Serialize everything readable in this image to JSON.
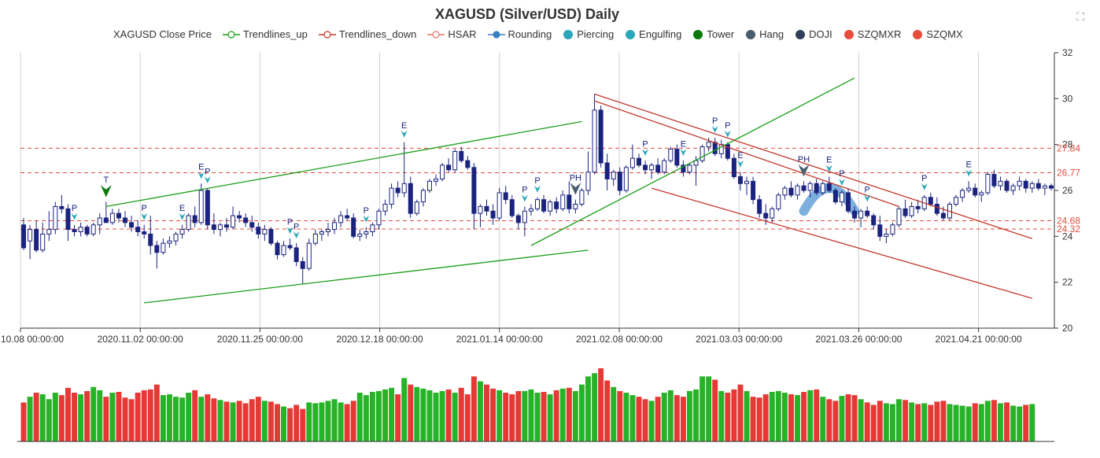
{
  "chart_data": {
    "type": "candlestick",
    "title": "XAGUSD (Silver/USD) Daily",
    "legend": [
      {
        "name": "XAGUSD Close Price",
        "marker": "none",
        "color": "#333333"
      },
      {
        "name": "Trendlines_up",
        "marker": "line-circle",
        "color": "#1a9e1a"
      },
      {
        "name": "Trendlines_down",
        "marker": "line-circle",
        "color": "#c0392b"
      },
      {
        "name": "HSAR",
        "marker": "line-circle-dashed",
        "color": "#e8746b"
      },
      {
        "name": "Rounding",
        "marker": "line-dot",
        "color": "#3a7fc1"
      },
      {
        "name": "Piercing",
        "marker": "dot",
        "color": "#2aa7b8"
      },
      {
        "name": "Engulfing",
        "marker": "dot",
        "color": "#2aa7b8"
      },
      {
        "name": "Tower",
        "marker": "dot",
        "color": "#0a7a0a"
      },
      {
        "name": "Hang",
        "marker": "dot",
        "color": "#4a5e6e"
      },
      {
        "name": "DOJI",
        "marker": "dot",
        "color": "#2e3f5a"
      },
      {
        "name": "SZQMXR",
        "marker": "dot",
        "color": "#e74c3c"
      },
      {
        "name": "SZQMX",
        "marker": "dot",
        "color": "#e74c3c"
      }
    ],
    "x_tick_labels": [
      "2020.10.08 00:00:00",
      "2020.11.02 00:00:00",
      "2020.11.25 00:00:00",
      "2020.12.18 00:00:00",
      "2021.01.14 00:00:00",
      "2021.02.08 00:00:00",
      "2021.03.03 00:00:00",
      "2021.03.26 00:00:00",
      "2021.04.21 00:00:00"
    ],
    "y_ticks": [
      20,
      22,
      24,
      26,
      28,
      30,
      32
    ],
    "ylim": [
      20,
      32
    ],
    "grid": {
      "vertical": true,
      "horizontal": false
    },
    "hsar_levels": [
      {
        "value": 27.84,
        "label": "27.84"
      },
      {
        "value": 26.77,
        "label": "26.77"
      },
      {
        "value": 24.68,
        "label": "24.68"
      },
      {
        "value": 24.32,
        "label": "24.32"
      }
    ],
    "candles": [
      [
        24.5,
        24.8,
        23.4,
        23.5
      ],
      [
        23.8,
        24.5,
        23.0,
        24.3
      ],
      [
        24.3,
        24.7,
        23.3,
        23.4
      ],
      [
        23.4,
        24.6,
        23.3,
        24.1
      ],
      [
        24.1,
        25.1,
        23.8,
        24.3
      ],
      [
        24.3,
        25.5,
        24.1,
        25.3
      ],
      [
        25.3,
        25.8,
        25.0,
        25.2
      ],
      [
        25.2,
        25.4,
        23.8,
        24.3
      ],
      [
        24.3,
        24.5,
        24.0,
        24.2
      ],
      [
        24.2,
        24.6,
        24.0,
        24.4
      ],
      [
        24.4,
        24.5,
        24.0,
        24.1
      ],
      [
        24.1,
        24.6,
        24.0,
        24.5
      ],
      [
        24.5,
        25.0,
        24.1,
        24.8
      ],
      [
        24.8,
        25.5,
        24.6,
        24.6
      ],
      [
        24.6,
        25.2,
        24.5,
        25.0
      ],
      [
        25.0,
        25.2,
        24.6,
        24.8
      ],
      [
        24.8,
        25.1,
        24.4,
        24.6
      ],
      [
        24.6,
        24.9,
        24.2,
        24.4
      ],
      [
        24.4,
        24.7,
        24.0,
        24.2
      ],
      [
        24.2,
        24.5,
        23.9,
        24.1
      ],
      [
        24.1,
        24.9,
        23.2,
        23.6
      ],
      [
        23.6,
        23.8,
        22.6,
        23.3
      ],
      [
        23.3,
        23.9,
        23.2,
        23.7
      ],
      [
        23.7,
        24.0,
        23.5,
        23.8
      ],
      [
        23.8,
        24.2,
        23.6,
        24.1
      ],
      [
        24.1,
        24.5,
        23.9,
        24.3
      ],
      [
        24.3,
        25.0,
        24.2,
        24.9
      ],
      [
        24.9,
        25.3,
        24.4,
        24.6
      ],
      [
        24.6,
        26.3,
        24.5,
        26.0
      ],
      [
        26.0,
        26.1,
        24.3,
        24.5
      ],
      [
        24.5,
        25.0,
        24.1,
        24.3
      ],
      [
        24.3,
        24.6,
        24.0,
        24.5
      ],
      [
        24.5,
        24.8,
        24.2,
        24.4
      ],
      [
        24.4,
        25.3,
        24.3,
        24.9
      ],
      [
        24.9,
        25.1,
        24.6,
        24.8
      ],
      [
        24.8,
        25.0,
        24.4,
        24.6
      ],
      [
        24.6,
        24.9,
        24.2,
        24.4
      ],
      [
        24.4,
        24.6,
        23.9,
        24.1
      ],
      [
        24.1,
        24.5,
        23.8,
        24.3
      ],
      [
        24.3,
        24.4,
        23.6,
        23.7
      ],
      [
        23.7,
        23.8,
        23.0,
        23.2
      ],
      [
        23.2,
        23.8,
        23.1,
        23.6
      ],
      [
        23.6,
        23.9,
        23.4,
        23.5
      ],
      [
        23.5,
        23.7,
        22.7,
        22.9
      ],
      [
        22.9,
        23.1,
        21.9,
        22.6
      ],
      [
        22.6,
        23.9,
        22.5,
        23.7
      ],
      [
        23.7,
        24.3,
        23.6,
        24.1
      ],
      [
        24.1,
        24.3,
        23.8,
        24.2
      ],
      [
        24.2,
        24.6,
        24.0,
        24.3
      ],
      [
        24.3,
        24.8,
        24.1,
        24.6
      ],
      [
        24.6,
        25.1,
        24.4,
        24.9
      ],
      [
        24.9,
        25.2,
        24.7,
        24.8
      ],
      [
        24.8,
        25.0,
        23.9,
        24.0
      ],
      [
        24.0,
        24.3,
        23.8,
        24.1
      ],
      [
        24.1,
        24.4,
        23.9,
        24.2
      ],
      [
        24.2,
        24.6,
        24.0,
        24.5
      ],
      [
        24.5,
        25.2,
        24.3,
        25.1
      ],
      [
        25.1,
        25.6,
        24.9,
        25.4
      ],
      [
        25.4,
        26.3,
        25.2,
        26.1
      ],
      [
        26.1,
        26.4,
        25.7,
        25.9
      ],
      [
        25.9,
        28.1,
        25.7,
        26.3
      ],
      [
        26.3,
        26.6,
        24.8,
        25.0
      ],
      [
        25.0,
        25.6,
        24.9,
        25.5
      ],
      [
        25.5,
        26.1,
        25.3,
        26.0
      ],
      [
        26.0,
        26.5,
        25.9,
        26.4
      ],
      [
        26.4,
        26.7,
        26.2,
        26.5
      ],
      [
        26.5,
        27.2,
        26.4,
        27.1
      ],
      [
        27.1,
        27.4,
        26.8,
        26.9
      ],
      [
        26.9,
        27.8,
        26.8,
        27.7
      ],
      [
        27.7,
        27.9,
        27.2,
        27.3
      ],
      [
        27.3,
        27.5,
        26.9,
        27.0
      ],
      [
        27.0,
        27.2,
        24.3,
        25.0
      ],
      [
        25.0,
        25.4,
        24.4,
        25.3
      ],
      [
        25.3,
        25.6,
        24.9,
        25.1
      ],
      [
        25.1,
        25.4,
        24.5,
        24.8
      ],
      [
        24.8,
        26.1,
        24.7,
        25.9
      ],
      [
        25.9,
        26.2,
        25.4,
        25.6
      ],
      [
        25.6,
        25.8,
        24.8,
        24.9
      ],
      [
        24.9,
        25.0,
        24.3,
        24.6
      ],
      [
        24.6,
        25.3,
        24.0,
        25.1
      ],
      [
        25.1,
        25.4,
        24.9,
        25.2
      ],
      [
        25.2,
        25.7,
        25.1,
        25.6
      ],
      [
        25.6,
        25.8,
        25.0,
        25.1
      ],
      [
        25.1,
        25.6,
        24.9,
        25.5
      ],
      [
        25.5,
        25.7,
        25.0,
        25.2
      ],
      [
        25.2,
        26.0,
        25.1,
        25.8
      ],
      [
        25.8,
        26.4,
        25.0,
        25.2
      ],
      [
        25.2,
        25.6,
        25.0,
        25.4
      ],
      [
        25.4,
        26.1,
        25.3,
        26.0
      ],
      [
        26.0,
        27.7,
        25.8,
        26.8
      ],
      [
        26.8,
        30.2,
        26.7,
        29.5
      ],
      [
        29.5,
        29.7,
        27.0,
        27.2
      ],
      [
        27.2,
        27.6,
        26.0,
        26.5
      ],
      [
        26.5,
        26.9,
        26.2,
        26.8
      ],
      [
        26.8,
        27.0,
        25.8,
        26.0
      ],
      [
        26.0,
        27.1,
        25.9,
        27.0
      ],
      [
        27.0,
        28.0,
        26.9,
        27.4
      ],
      [
        27.4,
        27.6,
        27.0,
        27.1
      ],
      [
        27.1,
        27.3,
        26.7,
        26.9
      ],
      [
        26.9,
        27.2,
        26.5,
        27.1
      ],
      [
        27.1,
        27.4,
        26.7,
        26.8
      ],
      [
        26.8,
        27.4,
        26.7,
        27.3
      ],
      [
        27.3,
        27.9,
        27.2,
        27.8
      ],
      [
        27.8,
        28.0,
        27.0,
        27.1
      ],
      [
        27.1,
        27.3,
        26.6,
        26.8
      ],
      [
        26.8,
        27.2,
        26.7,
        27.1
      ],
      [
        27.1,
        27.5,
        26.2,
        27.3
      ],
      [
        27.3,
        28.0,
        27.2,
        27.9
      ],
      [
        27.9,
        28.3,
        27.7,
        28.1
      ],
      [
        28.1,
        28.3,
        27.5,
        27.6
      ],
      [
        27.6,
        28.2,
        27.4,
        28.0
      ],
      [
        28.0,
        28.1,
        27.3,
        27.4
      ],
      [
        27.4,
        27.6,
        26.5,
        26.6
      ],
      [
        26.6,
        26.8,
        26.0,
        26.3
      ],
      [
        26.3,
        26.6,
        25.8,
        26.4
      ],
      [
        26.4,
        26.6,
        25.4,
        25.6
      ],
      [
        25.6,
        25.8,
        24.8,
        25.0
      ],
      [
        25.0,
        25.4,
        24.5,
        24.8
      ],
      [
        24.8,
        25.3,
        24.6,
        25.2
      ],
      [
        25.2,
        25.9,
        25.1,
        25.8
      ],
      [
        25.8,
        26.2,
        25.6,
        26.1
      ],
      [
        26.1,
        26.4,
        25.7,
        25.8
      ],
      [
        25.8,
        26.3,
        25.6,
        26.2
      ],
      [
        26.2,
        26.4,
        25.9,
        26.0
      ],
      [
        26.0,
        26.4,
        25.7,
        26.3
      ],
      [
        26.3,
        26.5,
        25.8,
        25.9
      ],
      [
        25.9,
        26.4,
        25.8,
        26.3
      ],
      [
        26.3,
        26.6,
        25.9,
        26.0
      ],
      [
        26.0,
        26.1,
        25.4,
        25.5
      ],
      [
        25.5,
        26.0,
        25.3,
        25.9
      ],
      [
        25.9,
        26.1,
        25.0,
        25.1
      ],
      [
        25.1,
        25.3,
        24.6,
        24.8
      ],
      [
        24.8,
        25.2,
        24.4,
        25.1
      ],
      [
        25.1,
        25.3,
        24.8,
        24.9
      ],
      [
        24.9,
        25.0,
        24.3,
        24.5
      ],
      [
        24.5,
        24.9,
        23.8,
        24.0
      ],
      [
        24.0,
        24.3,
        23.7,
        24.1
      ],
      [
        24.1,
        24.6,
        24.0,
        24.5
      ],
      [
        24.5,
        25.3,
        24.4,
        25.2
      ],
      [
        25.2,
        25.6,
        24.8,
        24.9
      ],
      [
        24.9,
        25.5,
        24.8,
        25.3
      ],
      [
        25.3,
        25.6,
        25.0,
        25.2
      ],
      [
        25.2,
        25.8,
        25.1,
        25.7
      ],
      [
        25.7,
        25.9,
        25.3,
        25.4
      ],
      [
        25.4,
        25.7,
        24.9,
        25.0
      ],
      [
        25.0,
        25.3,
        24.7,
        24.8
      ],
      [
        24.8,
        25.5,
        24.7,
        25.4
      ],
      [
        25.4,
        25.8,
        25.3,
        25.7
      ],
      [
        25.7,
        26.1,
        25.5,
        26.0
      ],
      [
        26.0,
        26.4,
        25.9,
        26.1
      ],
      [
        26.1,
        26.3,
        25.7,
        25.8
      ],
      [
        25.8,
        26.0,
        25.5,
        25.9
      ],
      [
        25.9,
        26.8,
        25.8,
        26.7
      ],
      [
        26.7,
        26.9,
        26.1,
        26.2
      ],
      [
        26.2,
        26.6,
        26.0,
        26.4
      ],
      [
        26.4,
        26.5,
        25.9,
        26.0
      ],
      [
        26.0,
        26.3,
        25.8,
        26.2
      ],
      [
        26.2,
        26.6,
        26.0,
        26.4
      ],
      [
        26.4,
        26.5,
        25.9,
        26.1
      ],
      [
        26.1,
        26.4,
        25.9,
        26.3
      ],
      [
        26.3,
        26.5,
        26.0,
        26.1
      ],
      [
        26.1,
        26.3,
        25.8,
        26.2
      ],
      [
        26.2,
        26.3,
        26.0,
        26.1
      ]
    ],
    "volume": [
      48,
      55,
      60,
      58,
      52,
      60,
      57,
      66,
      60,
      58,
      62,
      67,
      63,
      55,
      60,
      61,
      54,
      52,
      60,
      63,
      64,
      70,
      57,
      58,
      55,
      54,
      60,
      63,
      55,
      58,
      53,
      51,
      49,
      48,
      50,
      47,
      52,
      55,
      50,
      49,
      46,
      43,
      41,
      45,
      40,
      48,
      47,
      48,
      50,
      52,
      48,
      46,
      50,
      60,
      57,
      61,
      62,
      64,
      66,
      58,
      78,
      70,
      67,
      65,
      63,
      60,
      62,
      64,
      60,
      66,
      58,
      80,
      74,
      70,
      65,
      63,
      60,
      58,
      62,
      62,
      64,
      60,
      61,
      58,
      63,
      65,
      66,
      62,
      70,
      80,
      84,
      90,
      75,
      67,
      62,
      60,
      57,
      55,
      52,
      50,
      55,
      60,
      63,
      57,
      55,
      62,
      64,
      80,
      80,
      76,
      62,
      60,
      64,
      70,
      62,
      55,
      54,
      58,
      61,
      62,
      60,
      58,
      57,
      61,
      63,
      64,
      55,
      52,
      50,
      56,
      58,
      57,
      52,
      48,
      45,
      50,
      47,
      46,
      52,
      51,
      48,
      46,
      47,
      45,
      49,
      50,
      46,
      45,
      44,
      43,
      47,
      46,
      50,
      51,
      47,
      48,
      44,
      43,
      45,
      46
    ],
    "trendlines_up": [
      [
        3.8,
        25.3,
        26.3
      ],
      [
        1.2,
        20.2,
        21.8
      ],
      [
        45.4,
        22.0,
        24.6
      ]
    ],
    "trendlines_up_label": "Trendlines_up",
    "trendlines_down": [
      [
        6.8,
        30.3,
        29.6
      ],
      [
        7.1,
        20.8,
        21.6
      ],
      [
        8.6,
        28.1,
        22.2
      ]
    ],
    "rounding_segment": {
      "x0": 123.0,
      "x1": 131.0,
      "peak": 26.1,
      "ends": 25.1
    },
    "pattern_markers": [
      {
        "type": "P",
        "idx": 8,
        "color": "#2aa7b8"
      },
      {
        "type": "T",
        "idx": 13,
        "color": "#0a7a0a"
      },
      {
        "type": "P",
        "idx": 19,
        "color": "#2aa7b8"
      },
      {
        "type": "E",
        "idx": 25,
        "color": "#2aa7b8"
      },
      {
        "type": "E",
        "idx": 28,
        "color": "#2aa7b8"
      },
      {
        "type": "P",
        "idx": 29,
        "color": "#2aa7b8"
      },
      {
        "type": "P",
        "idx": 42,
        "color": "#2aa7b8"
      },
      {
        "type": "P",
        "idx": 43,
        "color": "#2aa7b8"
      },
      {
        "type": "P",
        "idx": 54,
        "color": "#2aa7b8"
      },
      {
        "type": "E",
        "idx": 60,
        "color": "#2aa7b8"
      },
      {
        "type": "P",
        "idx": 79,
        "color": "#2aa7b8"
      },
      {
        "type": "P",
        "idx": 81,
        "color": "#2aa7b8"
      },
      {
        "type": "PH",
        "idx": 87,
        "color": "#4a5e6e"
      },
      {
        "type": "P",
        "idx": 98,
        "color": "#2aa7b8"
      },
      {
        "type": "E",
        "idx": 104,
        "color": "#2aa7b8"
      },
      {
        "type": "P",
        "idx": 109,
        "color": "#2aa7b8"
      },
      {
        "type": "P",
        "idx": 111,
        "color": "#2aa7b8"
      },
      {
        "type": "E",
        "idx": 113,
        "color": "#2aa7b8"
      },
      {
        "type": "PH",
        "idx": 123,
        "color": "#4a5e6e"
      },
      {
        "type": "E",
        "idx": 127,
        "color": "#2aa7b8"
      },
      {
        "type": "P",
        "idx": 129,
        "color": "#2aa7b8"
      },
      {
        "type": "P",
        "idx": 133,
        "color": "#2aa7b8"
      },
      {
        "type": "P",
        "idx": 142,
        "color": "#2aa7b8"
      },
      {
        "type": "E",
        "idx": 149,
        "color": "#2aa7b8"
      }
    ],
    "colors": {
      "bull_body": "#ffffff",
      "bull_border": "#1a237e",
      "bear_body": "#1a237e",
      "vol_up": "#27b327",
      "vol_down": "#e53935",
      "grid": "#d0d0d0",
      "axis": "#333333",
      "hsar": "#e74c3c",
      "trend_up": "#1a9e1a",
      "trend_down": "#c0392b",
      "rounding": "#5b9bd5"
    }
  }
}
